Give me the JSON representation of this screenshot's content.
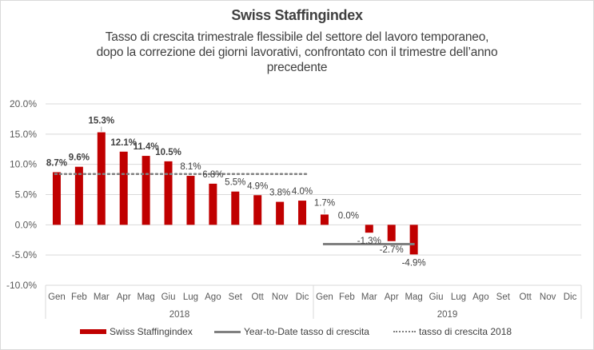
{
  "chart_data": {
    "type": "bar",
    "title": "Swiss Staffingindex",
    "subtitle_lines": [
      "Tasso di crescita trimestrale flessibile del settore del lavoro temporaneo,",
      "dopo la correzione dei giorni lavorativi, confrontato con il trimestre dell’anno",
      "precedente"
    ],
    "xlabel": "",
    "ylabel": "",
    "ylim": [
      -10,
      20
    ],
    "ytick_step": 5,
    "ytick_labels": [
      "20.0%",
      "15.0%",
      "10.0%",
      "5.0%",
      "0.0%",
      "-5.0%",
      "-10.0%"
    ],
    "grid": true,
    "categories": [
      "Gen",
      "Feb",
      "Mar",
      "Apr",
      "Mag",
      "Giu",
      "Lug",
      "Ago",
      "Set",
      "Ott",
      "Nov",
      "Dic",
      "Gen",
      "Feb",
      "Mar",
      "Apr",
      "Mag",
      "Giu",
      "Lug",
      "Ago",
      "Set",
      "Ott",
      "Nov",
      "Dic"
    ],
    "groups": [
      {
        "label": "2018",
        "start": 0,
        "end": 11
      },
      {
        "label": "2019",
        "start": 12,
        "end": 23
      }
    ],
    "series": [
      {
        "name": "Swiss Staffingindex",
        "type": "bar",
        "color": "#c00000",
        "values": [
          8.7,
          9.6,
          15.3,
          12.1,
          11.4,
          10.5,
          8.1,
          6.8,
          5.5,
          4.9,
          3.8,
          4.0,
          1.7,
          0.0,
          -1.3,
          -2.7,
          -4.9,
          null,
          null,
          null,
          null,
          null,
          null,
          null
        ],
        "labels": [
          "8.7%",
          "9.6%",
          "15.3%",
          "12.1%",
          "11.4%",
          "10.5%",
          "8.1%",
          "6.8%",
          "5.5%",
          "4.9%",
          "3.8%",
          "4.0%",
          "1.7%",
          "0.0%",
          "-1.3%",
          "-2.7%",
          "-4.9%",
          "",
          "",
          "",
          "",
          "",
          "",
          ""
        ]
      },
      {
        "name": "Year-to-Date tasso di crescita",
        "type": "line",
        "color": "#808080",
        "value": -3.2,
        "from_index": 12,
        "to_index": 16
      },
      {
        "name": "tasso di crescita 2018",
        "type": "dotted-line",
        "color": "#808080",
        "value": 8.4,
        "from_index": 0,
        "to_index": 11
      }
    ],
    "legend_position": "bottom"
  }
}
